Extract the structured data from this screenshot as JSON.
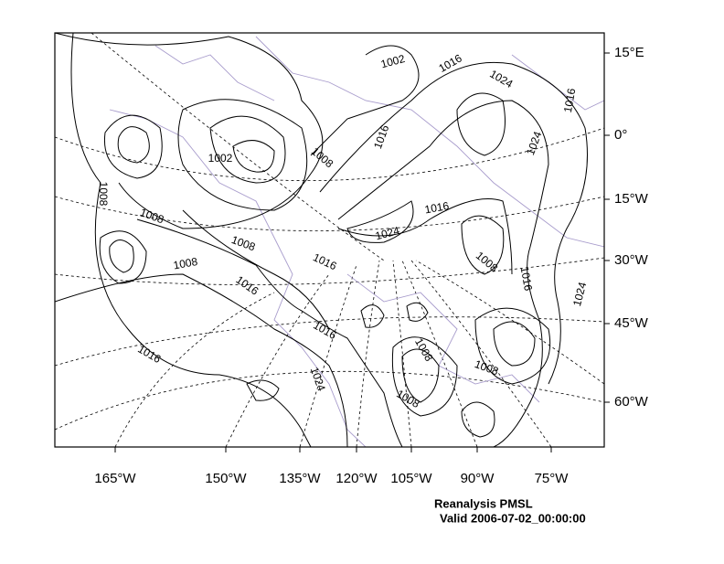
{
  "map": {
    "right_labels": [
      "15°E",
      "0°",
      "15°W",
      "30°W",
      "45°W",
      "60°W"
    ],
    "bottom_labels": [
      "165°W",
      "150°W",
      "135°W",
      "120°W",
      "105°W",
      "90°W",
      "75°W"
    ],
    "contour_labels": [
      "1002",
      "1016",
      "1024",
      "1016",
      "1002",
      "1008",
      "1016",
      "1024",
      "1008",
      "1008",
      "1008",
      "1016",
      "1024",
      "1008",
      "1016",
      "1008",
      "1016",
      "1024",
      "1016",
      "1016",
      "1016",
      "1008",
      "1008",
      "1024",
      "1008"
    ],
    "caption": [
      "Reanalysis PMSL",
      "Valid 2006-07-02_00:00:00"
    ]
  }
}
